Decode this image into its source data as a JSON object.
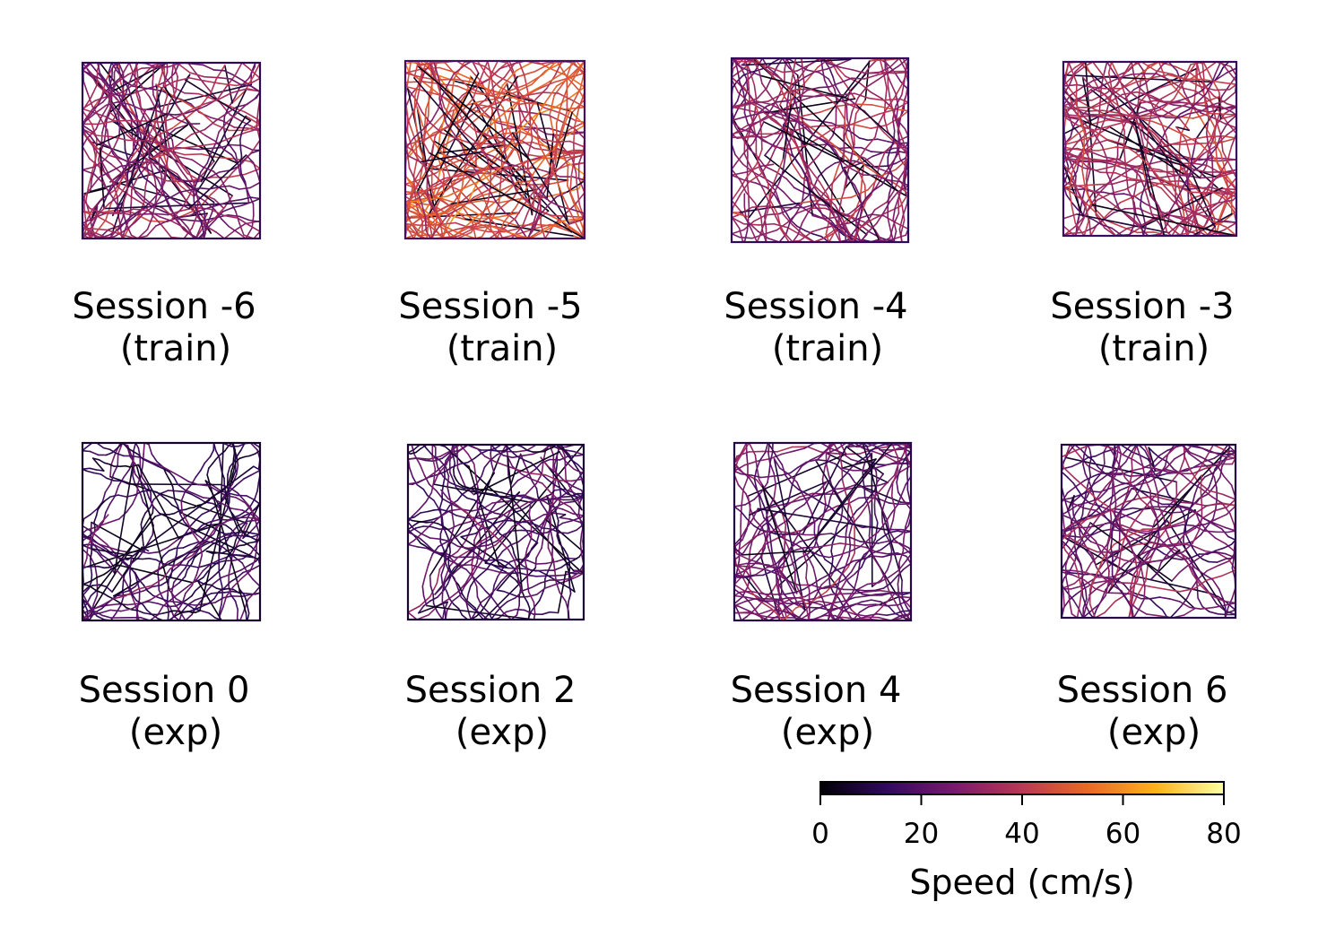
{
  "chart_data": {
    "type": "line",
    "description_free": true,
    "panels": [
      {
        "title": "Session -6",
        "subtitle": "(train)"
      },
      {
        "title": "Session -5",
        "subtitle": "(train)"
      },
      {
        "title": "Session -4",
        "subtitle": "(train)"
      },
      {
        "title": "Session -3",
        "subtitle": "(train)"
      },
      {
        "title": "Session 0",
        "subtitle": "(exp)"
      },
      {
        "title": "Session 2",
        "subtitle": "(exp)"
      },
      {
        "title": "Session 4",
        "subtitle": "(exp)"
      },
      {
        "title": "Session 6",
        "subtitle": "(exp)"
      }
    ],
    "colorbar": {
      "label": "Speed (cm/s)",
      "range": [
        0,
        80
      ],
      "ticks": [
        0,
        20,
        40,
        60,
        80
      ],
      "tick_labels": [
        "0",
        "20",
        "40",
        "60",
        "80"
      ],
      "colormap": [
        "#000004",
        "#320a5e",
        "#781b6c",
        "#bb3755",
        "#ed6925",
        "#fbb41a",
        "#fcffa4"
      ]
    },
    "typical_speed": [
      30,
      42,
      32,
      36,
      14,
      18,
      24,
      24
    ]
  }
}
